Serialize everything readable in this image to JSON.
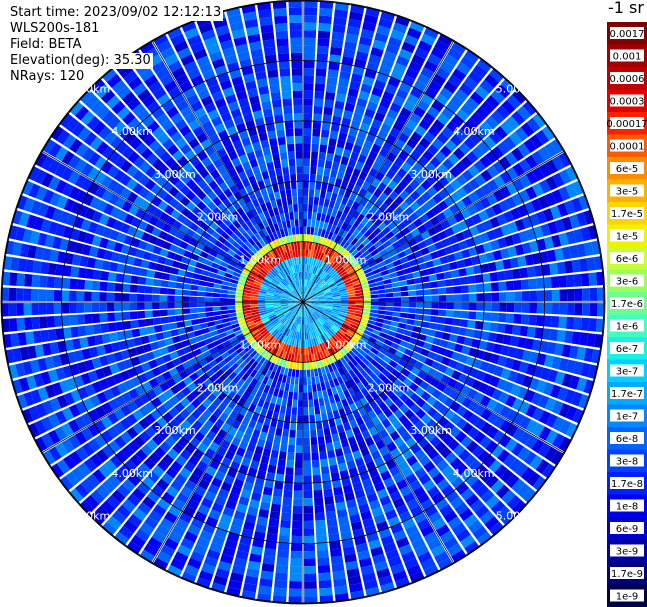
{
  "info": {
    "start_time": "Start time: 2023/09/02 12:12:13",
    "instrument": "WLS200s-181",
    "field": "Field: BETA",
    "elevation": "Elevation(deg): 35.30",
    "nrays": "NRays: 120"
  },
  "chart_data": {
    "type": "polar-ppi",
    "rays": 120,
    "range_rings_km": [
      1,
      2,
      3,
      4,
      5
    ],
    "range_labels": [
      "1.00km",
      "2.00km",
      "3.00km",
      "4.00km",
      "5.00km"
    ],
    "max_range_km": 5.0,
    "features": {
      "near_ring_peak_km": 0.85,
      "peak_value": "0.0003",
      "background_value": "1e-8"
    },
    "colorbar": {
      "title": "-1 sr",
      "labels": [
        "0.0017",
        "0.001",
        "0.0006",
        "0.0003",
        "0.00017",
        "0.0001",
        "6e-5",
        "3e-5",
        "1.7e-5",
        "1e-5",
        "6e-6",
        "3e-6",
        "1.7e-6",
        "1e-6",
        "6e-7",
        "3e-7",
        "1.7e-7",
        "1e-7",
        "6e-8",
        "3e-8",
        "1.7e-8",
        "1e-8",
        "6e-9",
        "3e-9",
        "1.7e-9",
        "1e-9"
      ],
      "colors": [
        "#7f0000",
        "#a00000",
        "#c00000",
        "#e00000",
        "#ff2000",
        "#ff5a00",
        "#ff8c00",
        "#ffb000",
        "#ffd400",
        "#f0f000",
        "#c8ff30",
        "#9aff5e",
        "#6eff8c",
        "#40ffc0",
        "#18f0e8",
        "#00d0ff",
        "#00aaff",
        "#0088ff",
        "#0064ff",
        "#0040ff",
        "#0020ff",
        "#0000f0",
        "#0000cc",
        "#0000a8",
        "#00007f",
        "#00004a"
      ]
    }
  }
}
